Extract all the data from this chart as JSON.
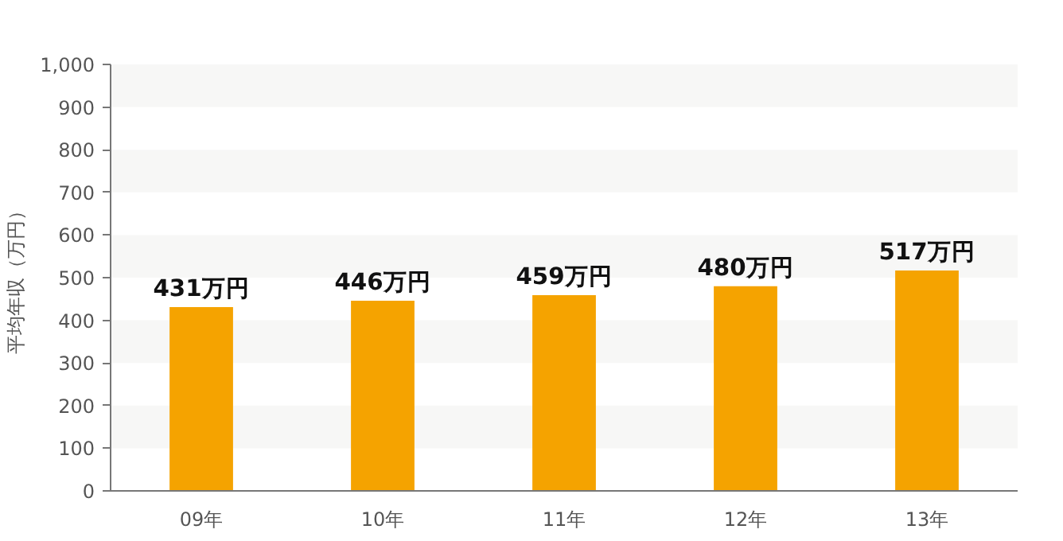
{
  "chart_data": {
    "type": "bar",
    "ylabel": "平均年収（万円）",
    "categories": [
      "09年",
      "10年",
      "11年",
      "12年",
      "13年"
    ],
    "values": [
      431,
      446,
      459,
      480,
      517
    ],
    "value_labels": [
      "431万円",
      "446万円",
      "459万円",
      "480万円",
      "517万円"
    ],
    "color": "#f5a300",
    "ylim": [
      0,
      1000
    ],
    "yticks": [
      0,
      100,
      200,
      300,
      400,
      500,
      600,
      700,
      800,
      900,
      {
        "value": 1000,
        "label": "1,000"
      }
    ]
  }
}
